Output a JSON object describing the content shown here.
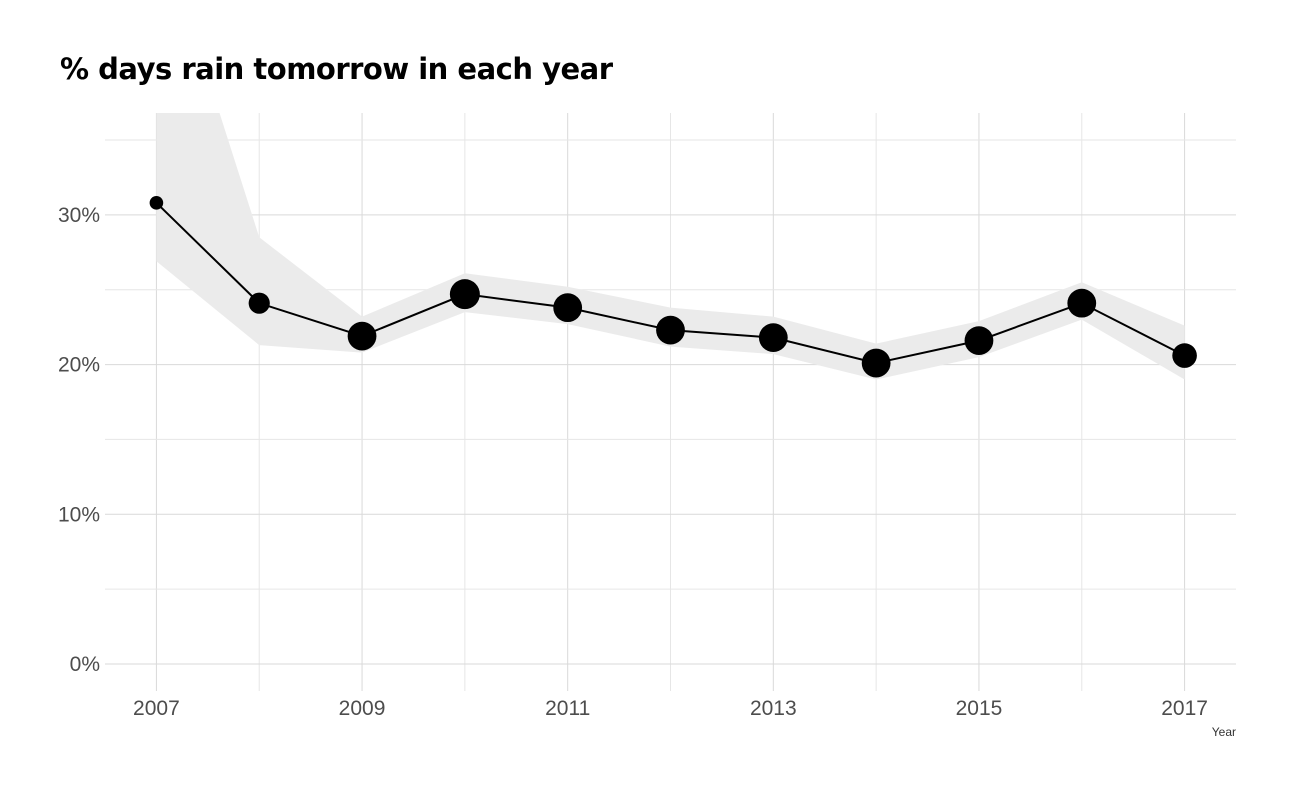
{
  "chart_data": {
    "type": "line",
    "title": "% days rain tomorrow in each year",
    "xlabel": "Year",
    "ylabel": "",
    "x_ticks": [
      "2007",
      "2009",
      "2011",
      "2013",
      "2015",
      "2017"
    ],
    "y_ticks": [
      "0%",
      "10%",
      "20%",
      "30%"
    ],
    "xlim": [
      2006.5,
      2017.5
    ],
    "ylim": [
      -1.8,
      36.8
    ],
    "grid": true,
    "legend": "none",
    "series": [
      {
        "x": [
          2007,
          2008,
          2009,
          2010,
          2011,
          2012,
          2013,
          2014,
          2015,
          2016,
          2017
        ],
        "y": [
          30.8,
          24.1,
          21.9,
          24.7,
          23.8,
          22.3,
          21.8,
          20.1,
          21.6,
          24.1,
          20.6
        ],
        "ci_lower": [
          26.9,
          21.3,
          20.8,
          23.5,
          22.7,
          21.2,
          20.7,
          19.0,
          20.5,
          23.0,
          19.0
        ],
        "ci_upper": [
          50.0,
          28.5,
          23.2,
          26.1,
          25.2,
          23.8,
          23.2,
          21.4,
          22.9,
          25.5,
          22.6
        ],
        "point_size": [
          1,
          4,
          9,
          10,
          9,
          9,
          9,
          9,
          9,
          9,
          6
        ]
      }
    ]
  }
}
